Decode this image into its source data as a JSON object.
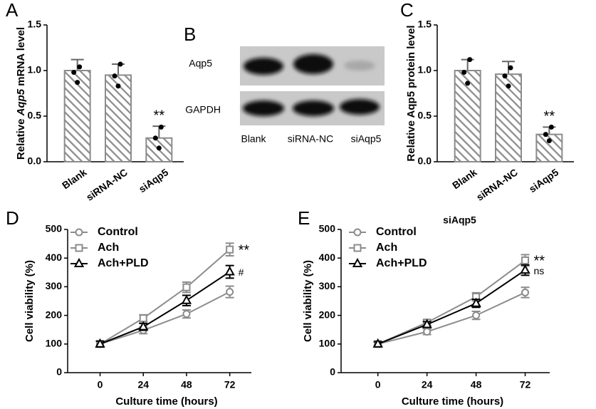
{
  "chart_data": [
    {
      "type": "bar",
      "panel": "A",
      "ylabel": [
        "Relative",
        "Aqp5",
        "mRNA level"
      ],
      "ylabel_italic": [
        false,
        true,
        false
      ],
      "categories": [
        "Blank",
        "siRNA-NC",
        "siAqp5"
      ],
      "values": [
        1.0,
        0.95,
        0.26
      ],
      "errors": [
        0.12,
        0.12,
        0.13
      ],
      "points": [
        [
          1.04,
          0.98,
          0.87
        ],
        [
          1.07,
          0.94,
          0.83
        ],
        [
          0.38,
          0.26,
          0.15
        ]
      ],
      "significance": [
        null,
        null,
        "**"
      ],
      "color": "#8c8c8c",
      "ylim": [
        0,
        1.5
      ],
      "yticks": [
        {
          "value": 0,
          "label": "0.0"
        },
        {
          "value": 0.5,
          "label": "0.5"
        },
        {
          "value": 1,
          "label": "1.0"
        },
        {
          "value": 1.5,
          "label": "1.5"
        }
      ]
    },
    {
      "type": "blot",
      "panel": "B",
      "rows": [
        "Aqp5",
        "GAPDH"
      ],
      "lanes": [
        "Blank",
        "siRNA-NC",
        "siAqp5"
      ]
    },
    {
      "type": "bar",
      "panel": "C",
      "ylabel": "Relative Aqp5 protein level",
      "categories": [
        "Blank",
        "siRNA-NC",
        "siAqp5"
      ],
      "values": [
        1.0,
        0.96,
        0.3
      ],
      "errors": [
        0.12,
        0.14,
        0.08
      ],
      "points": [
        [
          1.12,
          0.98,
          0.86
        ],
        [
          1.03,
          0.94,
          0.83
        ],
        [
          0.38,
          0.3,
          0.23
        ]
      ],
      "significance": [
        null,
        null,
        "**"
      ],
      "color": "#8c8c8c",
      "ylim": [
        0,
        1.5
      ],
      "yticks": [
        {
          "value": 0,
          "label": "0.0"
        },
        {
          "value": 0.5,
          "label": "0.5"
        },
        {
          "value": 1,
          "label": "1.0"
        },
        {
          "value": 1.5,
          "label": "1.5"
        }
      ]
    },
    {
      "type": "line",
      "panel": "D",
      "xlabel": "Culture time (hours)",
      "ylabel": "Cell viability (%)",
      "x": [
        0,
        24,
        48,
        72
      ],
      "xlim": [
        -18,
        84
      ],
      "xticks": [
        0,
        24,
        48,
        72
      ],
      "ylim": [
        0,
        500
      ],
      "yticks": [
        0,
        100,
        200,
        300,
        400,
        500
      ],
      "series": [
        {
          "name": "Control",
          "color": "#8c8c8c",
          "marker": "circle",
          "values": [
            100,
            148,
            205,
            282
          ],
          "errors": [
            10,
            12,
            14,
            20
          ]
        },
        {
          "name": "Ach",
          "color": "#8c8c8c",
          "marker": "square",
          "values": [
            100,
            190,
            298,
            430
          ],
          "errors": [
            10,
            12,
            18,
            22
          ],
          "annotation": "**"
        },
        {
          "name": "Ach+PLD",
          "color": "#000000",
          "marker": "triangle",
          "values": [
            100,
            160,
            252,
            352
          ],
          "errors": [
            10,
            12,
            18,
            22
          ],
          "annotation": "#"
        }
      ]
    },
    {
      "type": "line",
      "panel": "E",
      "title": "siAqp5",
      "xlabel": "Culture time (hours)",
      "ylabel": "Cell viability (%)",
      "x": [
        0,
        24,
        48,
        72
      ],
      "xlim": [
        -18,
        84
      ],
      "xticks": [
        0,
        24,
        48,
        72
      ],
      "ylim": [
        0,
        500
      ],
      "yticks": [
        0,
        100,
        200,
        300,
        400,
        500
      ],
      "series": [
        {
          "name": "Control",
          "color": "#8c8c8c",
          "marker": "circle",
          "values": [
            100,
            143,
            200,
            280
          ],
          "errors": [
            8,
            10,
            14,
            18
          ]
        },
        {
          "name": "Ach",
          "color": "#8c8c8c",
          "marker": "square",
          "values": [
            100,
            175,
            265,
            392
          ],
          "errors": [
            8,
            10,
            14,
            20
          ],
          "annotation": "**"
        },
        {
          "name": "Ach+PLD",
          "color": "#000000",
          "marker": "triangle",
          "values": [
            100,
            168,
            242,
            358
          ],
          "errors": [
            8,
            10,
            14,
            18
          ],
          "annotation": "ns"
        }
      ]
    }
  ]
}
